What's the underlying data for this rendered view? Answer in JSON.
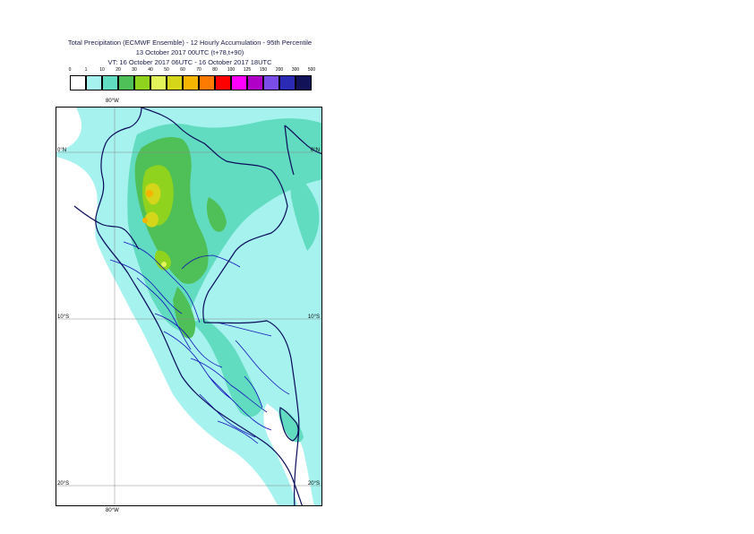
{
  "title": {
    "line1": "Total Precipitation (ECMWF Ensemble) - 12 Hourly Accumulation - 95th Percentile",
    "line2": "13 October 2017 00UTC (t+78,t+90)",
    "line3": "VT: 16 October 2017 06UTC - 16 October 2017 18UTC"
  },
  "legend": {
    "ticks": [
      "0",
      "1",
      "10",
      "20",
      "30",
      "40",
      "50",
      "60",
      "70",
      "80",
      "100",
      "125",
      "150",
      "200",
      "300",
      "500"
    ],
    "colors": [
      "#ffffff",
      "#a6f2ef",
      "#62dcc0",
      "#4fbf57",
      "#8fd31f",
      "#e3f45a",
      "#d5d51a",
      "#f5b400",
      "#ff7a00",
      "#ff0000",
      "#ff00ff",
      "#b000c8",
      "#7b4de8",
      "#2a2ab4",
      "#121258"
    ]
  },
  "map": {
    "lon_label_top": "80°W",
    "lon_label_bottom": "80°W",
    "lat_labels": [
      {
        "left": "0°N",
        "right": "0°N"
      },
      {
        "left": "10°S",
        "right": "10°S"
      },
      {
        "left": "20°S",
        "right": "20°S"
      }
    ],
    "region": "Peru / Ecuador",
    "colors": {
      "light": "#a6f2ef",
      "medium": "#62dcc0",
      "green": "#4fbf57",
      "yellowgreen": "#8fd31f",
      "yellow": "#d5d51a",
      "orange": "#f5b400",
      "coast": "#0a0a5a",
      "borders": "#1010b8"
    }
  }
}
